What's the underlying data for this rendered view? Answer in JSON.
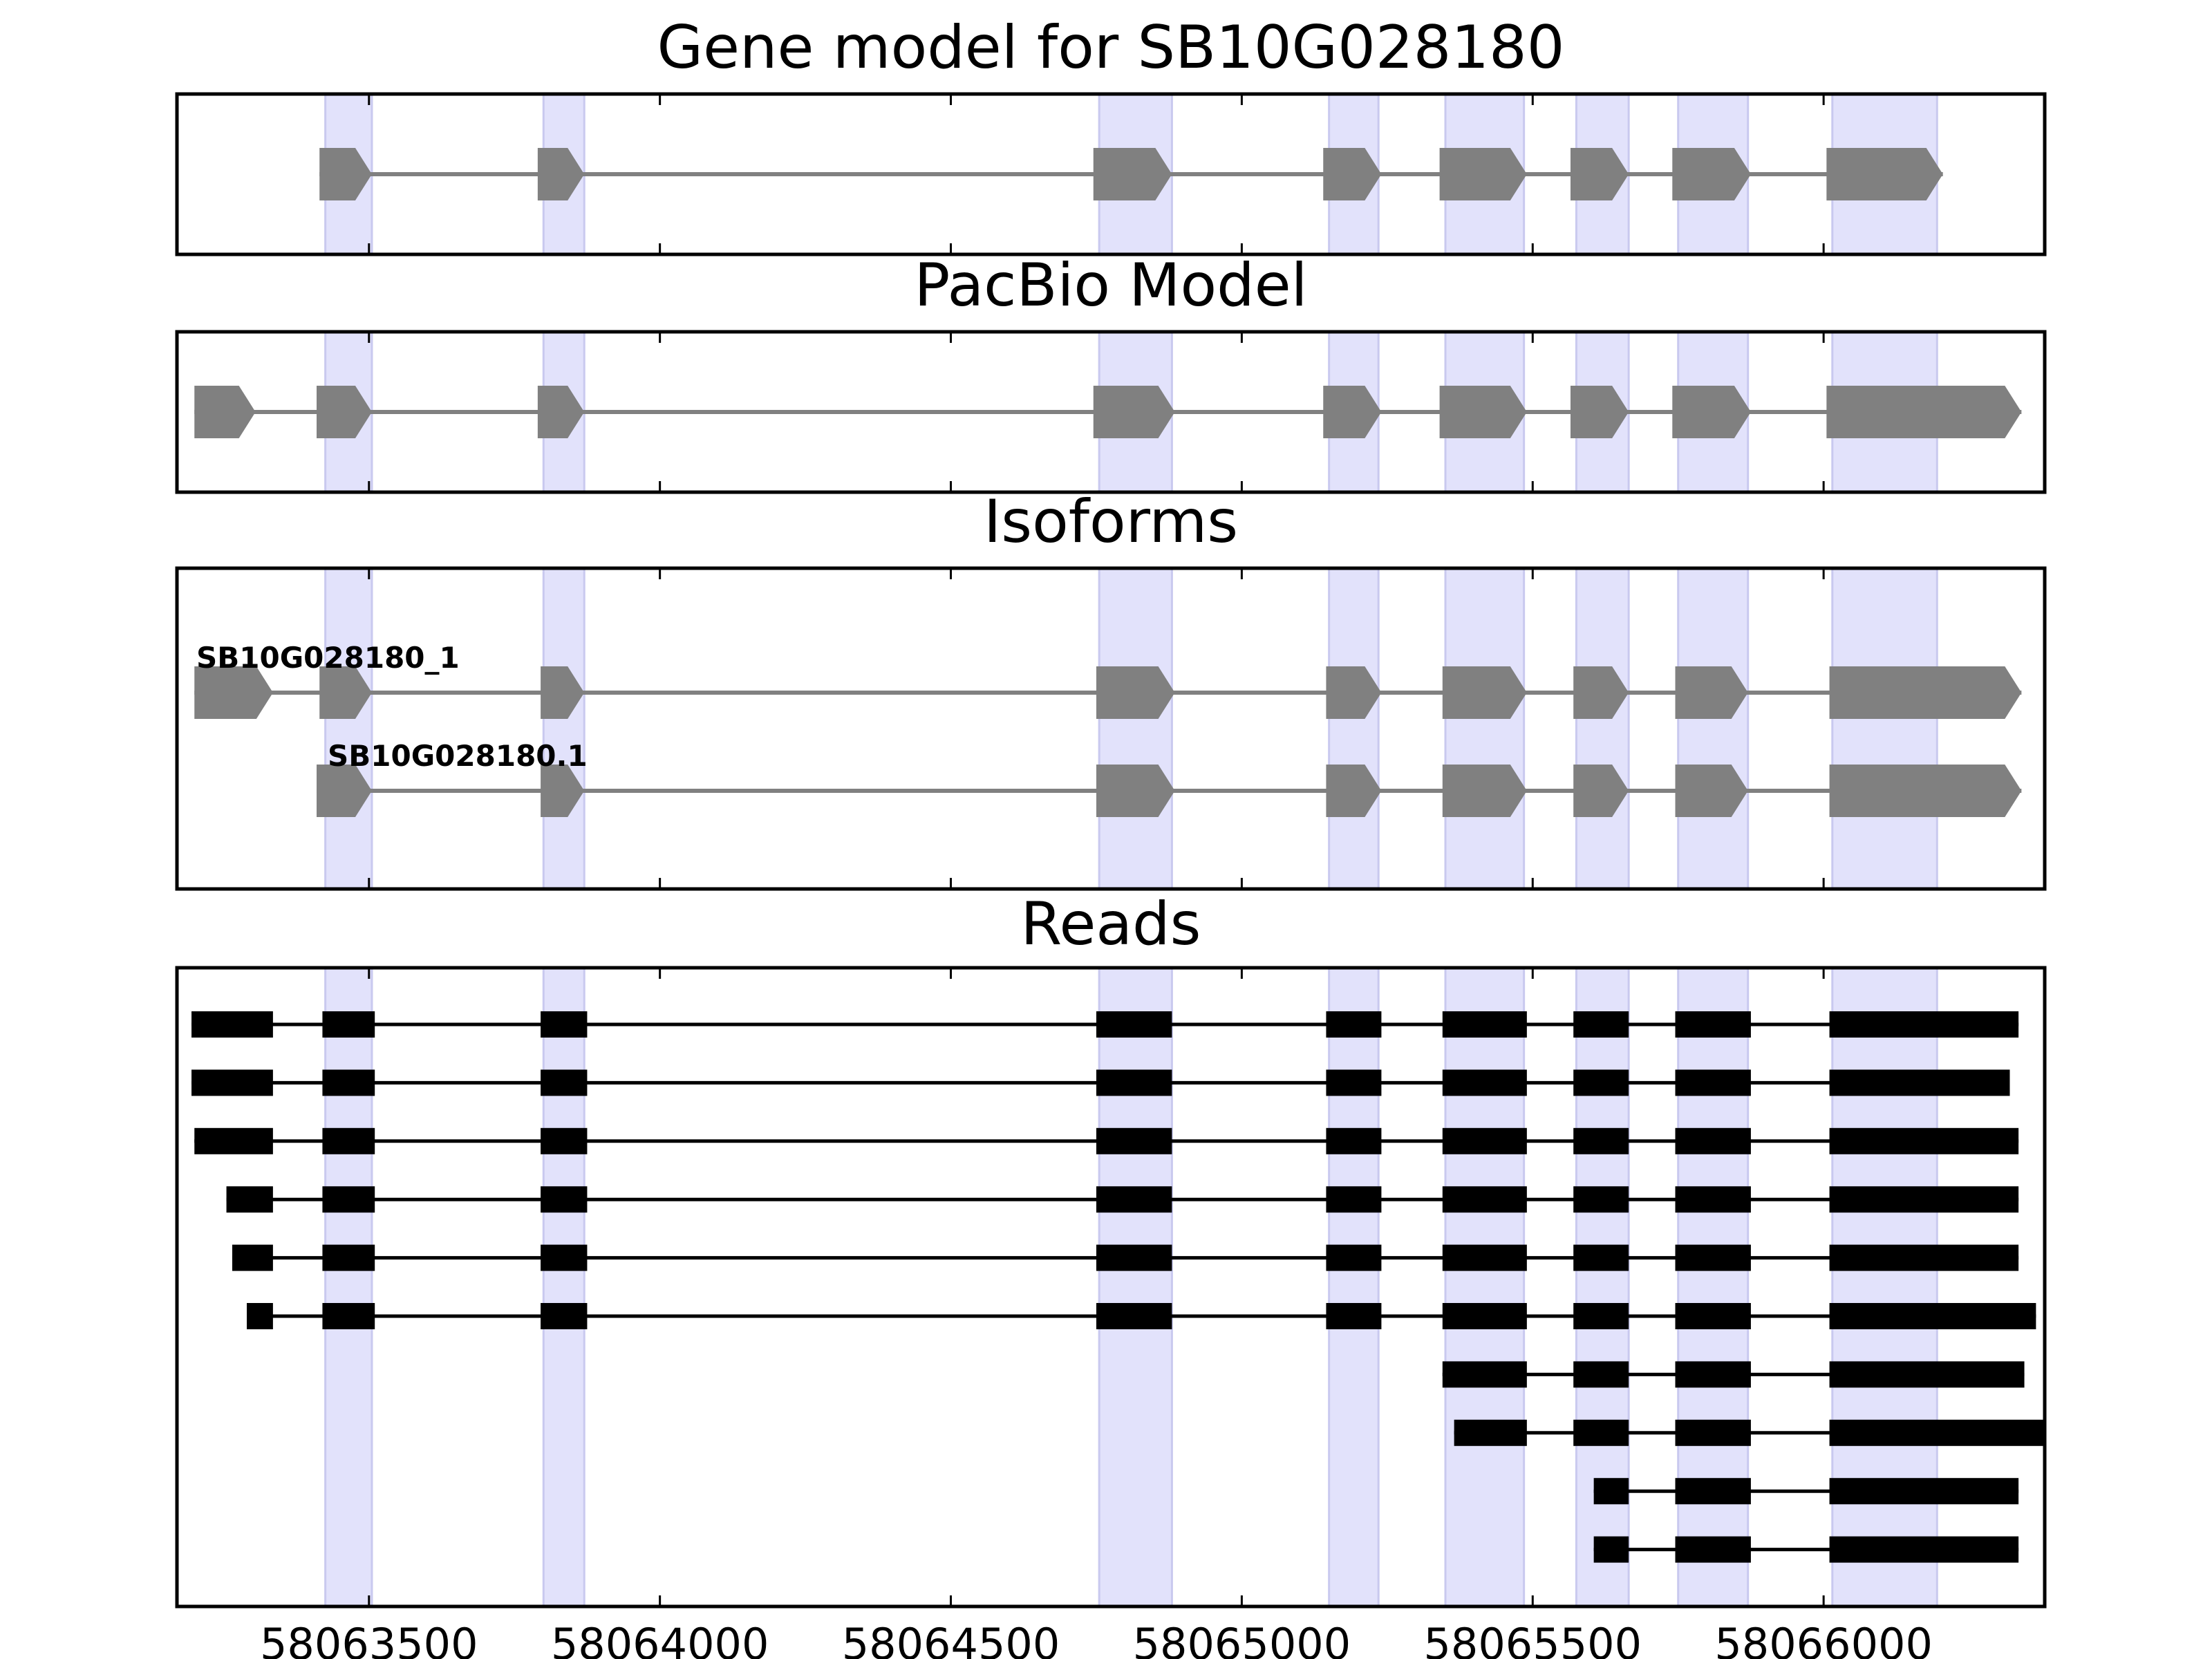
{
  "chart_data": {
    "type": "gene-structure",
    "x_axis": {
      "range": [
        58063170,
        58066380
      ],
      "ticks": [
        58063500,
        58064000,
        58064500,
        58065000,
        58065500,
        58066000
      ],
      "tick_labels": [
        "58063500",
        "58064000",
        "58064500",
        "58065000",
        "58065500",
        "58066000"
      ]
    },
    "highlight_color": "#e2e2fb",
    "highlights": [
      [
        58063425,
        58063505
      ],
      [
        58063800,
        58063870
      ],
      [
        58064755,
        58064880
      ],
      [
        58065150,
        58065235
      ],
      [
        58065350,
        58065485
      ],
      [
        58065575,
        58065665
      ],
      [
        58065750,
        58065870
      ],
      [
        58066015,
        58066195
      ]
    ],
    "panels": [
      {
        "title": "Gene model for SB10G028180",
        "kind": "model",
        "color": "#808080",
        "tracks": [
          {
            "label": "",
            "exons": [
              [
                58063415,
                58063505
              ],
              [
                58063790,
                58063870
              ],
              [
                58064745,
                58064880
              ],
              [
                58065140,
                58065240
              ],
              [
                58065340,
                58065490
              ],
              [
                58065565,
                58065665
              ],
              [
                58065740,
                58065875
              ],
              [
                58066005,
                58066205
              ]
            ]
          }
        ]
      },
      {
        "title": "PacBio Model",
        "kind": "model",
        "color": "#808080",
        "tracks": [
          {
            "label": "",
            "exons": [
              [
                58063200,
                58063305
              ],
              [
                58063410,
                58063505
              ],
              [
                58063790,
                58063870
              ],
              [
                58064745,
                58064885
              ],
              [
                58065140,
                58065240
              ],
              [
                58065340,
                58065490
              ],
              [
                58065565,
                58065665
              ],
              [
                58065740,
                58065875
              ],
              [
                58066005,
                58066340
              ]
            ]
          }
        ]
      },
      {
        "title": "Isoforms",
        "kind": "model",
        "color": "#808080",
        "tracks": [
          {
            "label": "SB10G028180_1",
            "exons": [
              [
                58063200,
                58063335
              ],
              [
                58063415,
                58063505
              ],
              [
                58063795,
                58063870
              ],
              [
                58064750,
                58064885
              ],
              [
                58065145,
                58065240
              ],
              [
                58065345,
                58065490
              ],
              [
                58065570,
                58065665
              ],
              [
                58065745,
                58065870
              ],
              [
                58066010,
                58066340
              ]
            ]
          },
          {
            "label": "SB10G028180.1",
            "exons": [
              [
                58063410,
                58063505
              ],
              [
                58063795,
                58063870
              ],
              [
                58064750,
                58064885
              ],
              [
                58065145,
                58065240
              ],
              [
                58065345,
                58065490
              ],
              [
                58065570,
                58065665
              ],
              [
                58065745,
                58065870
              ],
              [
                58066010,
                58066340
              ]
            ]
          }
        ]
      },
      {
        "title": "Reads",
        "kind": "reads",
        "color": "#000000",
        "tracks": [
          {
            "exons": [
              [
                58063195,
                58063335
              ],
              [
                58063420,
                58063510
              ],
              [
                58063795,
                58063875
              ],
              [
                58064750,
                58064880
              ],
              [
                58065145,
                58065240
              ],
              [
                58065345,
                58065490
              ],
              [
                58065570,
                58065665
              ],
              [
                58065745,
                58065875
              ],
              [
                58066010,
                58066335
              ]
            ]
          },
          {
            "exons": [
              [
                58063195,
                58063335
              ],
              [
                58063420,
                58063510
              ],
              [
                58063795,
                58063875
              ],
              [
                58064750,
                58064880
              ],
              [
                58065145,
                58065240
              ],
              [
                58065345,
                58065490
              ],
              [
                58065570,
                58065665
              ],
              [
                58065745,
                58065875
              ],
              [
                58066010,
                58066320
              ]
            ]
          },
          {
            "exons": [
              [
                58063200,
                58063335
              ],
              [
                58063420,
                58063510
              ],
              [
                58063795,
                58063875
              ],
              [
                58064750,
                58064880
              ],
              [
                58065145,
                58065240
              ],
              [
                58065345,
                58065490
              ],
              [
                58065570,
                58065665
              ],
              [
                58065745,
                58065875
              ],
              [
                58066010,
                58066335
              ]
            ]
          },
          {
            "exons": [
              [
                58063255,
                58063335
              ],
              [
                58063420,
                58063510
              ],
              [
                58063795,
                58063875
              ],
              [
                58064750,
                58064880
              ],
              [
                58065145,
                58065240
              ],
              [
                58065345,
                58065490
              ],
              [
                58065570,
                58065665
              ],
              [
                58065745,
                58065875
              ],
              [
                58066010,
                58066335
              ]
            ]
          },
          {
            "exons": [
              [
                58063265,
                58063335
              ],
              [
                58063420,
                58063510
              ],
              [
                58063795,
                58063875
              ],
              [
                58064750,
                58064880
              ],
              [
                58065145,
                58065240
              ],
              [
                58065345,
                58065490
              ],
              [
                58065570,
                58065665
              ],
              [
                58065745,
                58065875
              ],
              [
                58066010,
                58066335
              ]
            ]
          },
          {
            "exons": [
              [
                58063290,
                58063335
              ],
              [
                58063420,
                58063510
              ],
              [
                58063795,
                58063875
              ],
              [
                58064750,
                58064880
              ],
              [
                58065145,
                58065240
              ],
              [
                58065345,
                58065490
              ],
              [
                58065570,
                58065665
              ],
              [
                58065745,
                58065875
              ],
              [
                58066010,
                58066365
              ]
            ]
          },
          {
            "exons": [
              [
                58065345,
                58065490
              ],
              [
                58065570,
                58065665
              ],
              [
                58065745,
                58065875
              ],
              [
                58066010,
                58066345
              ]
            ]
          },
          {
            "exons": [
              [
                58065365,
                58065490
              ],
              [
                58065570,
                58065665
              ],
              [
                58065745,
                58065875
              ],
              [
                58066010,
                58066380
              ]
            ]
          },
          {
            "exons": [
              [
                58065605,
                58065665
              ],
              [
                58065745,
                58065875
              ],
              [
                58066010,
                58066335
              ]
            ]
          },
          {
            "exons": [
              [
                58065605,
                58065665
              ],
              [
                58065745,
                58065875
              ],
              [
                58066010,
                58066335
              ]
            ]
          }
        ]
      }
    ]
  }
}
